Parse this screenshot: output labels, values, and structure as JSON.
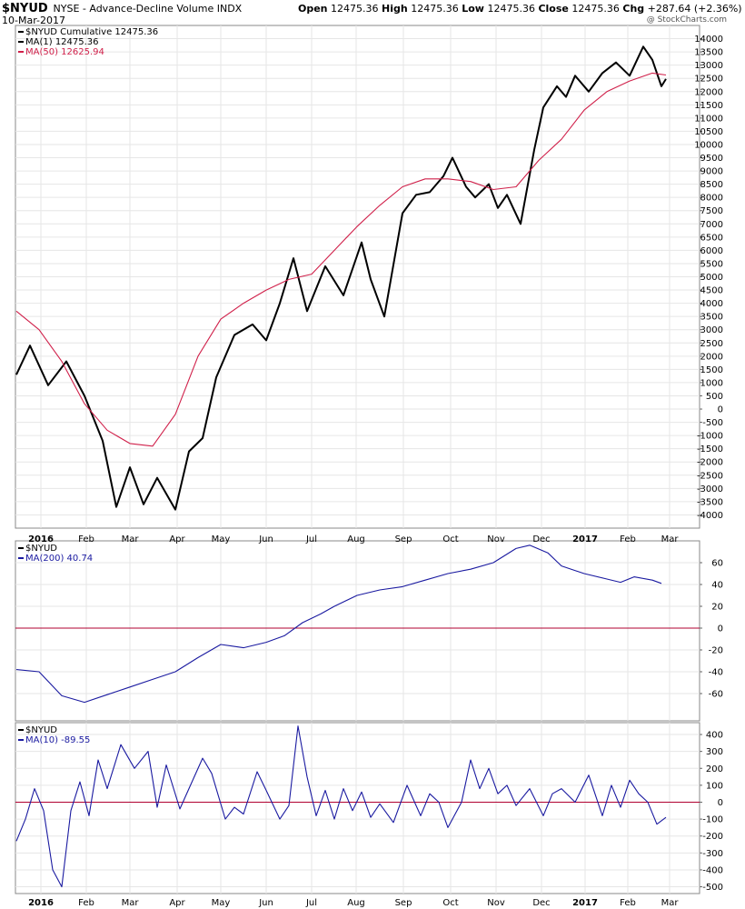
{
  "header": {
    "symbol": "$NYUD",
    "description": "NYSE - Advance-Decline Volume INDX",
    "date": "10-Mar-2017",
    "open_label": "Open",
    "open": "12475.36",
    "high_label": "High",
    "high": "12475.36",
    "low_label": "Low",
    "low": "12475.36",
    "close_label": "Close",
    "close": "12475.36",
    "chg_label": "Chg",
    "chg": "+287.64 (+2.36%)",
    "chg_arrow": "▲",
    "brand": "@ StockCharts.com"
  },
  "colors": {
    "price": "#000000",
    "ma50": "#d0204a",
    "indicator": "#1a1aa0",
    "zero_line": "#b00030",
    "grid": "#e6e6e6",
    "border": "#888888"
  },
  "chart_data": [
    {
      "type": "line",
      "panel": "main",
      "legend": [
        {
          "text": "$NYUD Cumulative 12475.36",
          "color": "#000000"
        },
        {
          "text": "MA(1) 12475.36",
          "color": "#000000"
        },
        {
          "text": "MA(50) 12625.94",
          "color": "#d0204a"
        }
      ],
      "ylim": [
        -4500,
        14500
      ],
      "ticks": [
        14000,
        13500,
        13000,
        12500,
        12000,
        11500,
        11000,
        10500,
        10000,
        9500,
        9000,
        8500,
        8000,
        7500,
        7000,
        6500,
        6000,
        5500,
        5000,
        4500,
        4000,
        3500,
        3000,
        2500,
        2000,
        1500,
        1000,
        500,
        0,
        -500,
        -1000,
        -1500,
        -2000,
        -2500,
        -3000,
        -3500,
        -4000
      ],
      "x_months": [
        "2016",
        "Feb",
        "Mar",
        "Apr",
        "May",
        "Jun",
        "Jul",
        "Aug",
        "Sep",
        "Oct",
        "Nov",
        "Dec",
        "2017",
        "Feb",
        "Mar"
      ],
      "series": [
        {
          "name": "$NYUD Cumulative",
          "x": [
            0,
            0.3,
            0.7,
            1.1,
            1.5,
            1.9,
            2.2,
            2.5,
            2.8,
            3.1,
            3.5,
            3.8,
            4.1,
            4.4,
            4.8,
            5.2,
            5.5,
            5.8,
            6.1,
            6.4,
            6.8,
            7.2,
            7.6,
            7.8,
            8.1,
            8.5,
            8.8,
            9.1,
            9.4,
            9.6,
            9.9,
            10.1,
            10.4,
            10.6,
            10.8,
            11.1,
            11.4,
            11.6,
            11.9,
            12.1,
            12.3,
            12.6,
            12.9,
            13.2,
            13.5,
            13.8,
            14.0,
            14.2,
            14.3
          ],
          "y": [
            1300,
            2400,
            900,
            1800,
            500,
            -1200,
            -3700,
            -2200,
            -3600,
            -2600,
            -3800,
            -1600,
            -1100,
            1200,
            2800,
            3200,
            2600,
            4000,
            5700,
            3700,
            5400,
            4300,
            6300,
            4900,
            3500,
            7400,
            8100,
            8200,
            8800,
            9500,
            8400,
            8000,
            8500,
            7600,
            8100,
            7000,
            9800,
            11400,
            12200,
            11800,
            12600,
            12000,
            12700,
            13100,
            12600,
            13700,
            13200,
            12200,
            12475
          ],
          "color": "#000000"
        },
        {
          "name": "MA(50)",
          "x": [
            0,
            0.5,
            1,
            1.5,
            2,
            2.5,
            3,
            3.5,
            4,
            4.5,
            5,
            5.5,
            6,
            6.5,
            7,
            7.5,
            8,
            8.5,
            9,
            9.5,
            10,
            10.5,
            11,
            11.5,
            12,
            12.5,
            13,
            13.5,
            14,
            14.3
          ],
          "y": [
            3700,
            3000,
            1800,
            200,
            -800,
            -1300,
            -1400,
            -200,
            2000,
            3400,
            4000,
            4500,
            4900,
            5100,
            6000,
            6900,
            7700,
            8400,
            8700,
            8700,
            8600,
            8300,
            8400,
            9400,
            10200,
            11300,
            12000,
            12400,
            12700,
            12626
          ],
          "color": "#d0204a"
        }
      ]
    },
    {
      "type": "line",
      "panel": "ma200",
      "legend": [
        {
          "text": "$NYUD",
          "color": "#000000"
        },
        {
          "text": "MA(200) 40.74",
          "color": "#1a1aa0"
        }
      ],
      "ylim": [
        -85,
        80
      ],
      "ticks": [
        60,
        40,
        20,
        0,
        -20,
        -40,
        -60
      ],
      "zero_line": 0,
      "series": [
        {
          "name": "MA(200)",
          "x": [
            0,
            0.5,
            1,
            1.5,
            2,
            2.5,
            3,
            3.5,
            4,
            4.5,
            5,
            5.5,
            5.9,
            6.3,
            6.7,
            7,
            7.5,
            8,
            8.5,
            9,
            9.5,
            10,
            10.5,
            11,
            11.3,
            11.7,
            12,
            12.5,
            13,
            13.3,
            13.6,
            14,
            14.2
          ],
          "y": [
            -38,
            -40,
            -62,
            -68,
            -61,
            -54,
            -47,
            -40,
            -27,
            -15,
            -18,
            -13,
            -7,
            5,
            13,
            20,
            30,
            35,
            38,
            44,
            50,
            54,
            60,
            73,
            76,
            69,
            57,
            50,
            45,
            42,
            47,
            44,
            41
          ],
          "color": "#1a1aa0"
        }
      ]
    },
    {
      "type": "line",
      "panel": "ma10",
      "legend": [
        {
          "text": "$NYUD",
          "color": "#000000"
        },
        {
          "text": "MA(10) -89.55",
          "color": "#1a1aa0"
        }
      ],
      "ylim": [
        -540,
        470
      ],
      "ticks": [
        400,
        300,
        200,
        100,
        0,
        -100,
        -200,
        -300,
        -400,
        -500
      ],
      "zero_line": 0,
      "series": [
        {
          "name": "MA(10)",
          "x": [
            0,
            0.2,
            0.4,
            0.6,
            0.8,
            1.0,
            1.2,
            1.4,
            1.6,
            1.8,
            2.0,
            2.3,
            2.6,
            2.9,
            3.1,
            3.3,
            3.6,
            3.9,
            4.1,
            4.3,
            4.6,
            4.8,
            5.0,
            5.3,
            5.5,
            5.8,
            6.0,
            6.2,
            6.4,
            6.6,
            6.8,
            7.0,
            7.2,
            7.4,
            7.6,
            7.8,
            8.0,
            8.3,
            8.6,
            8.9,
            9.1,
            9.3,
            9.5,
            9.8,
            10.0,
            10.2,
            10.4,
            10.6,
            10.8,
            11.0,
            11.3,
            11.6,
            11.8,
            12.0,
            12.3,
            12.6,
            12.9,
            13.1,
            13.3,
            13.5,
            13.7,
            13.9,
            14.1,
            14.3
          ],
          "y": [
            -230,
            -100,
            80,
            -50,
            -400,
            -500,
            -50,
            120,
            -80,
            250,
            80,
            340,
            200,
            300,
            -30,
            220,
            -40,
            140,
            260,
            170,
            -100,
            -30,
            -70,
            180,
            70,
            -100,
            -20,
            450,
            150,
            -80,
            70,
            -100,
            80,
            -50,
            60,
            -90,
            -10,
            -120,
            100,
            -80,
            50,
            0,
            -150,
            0,
            250,
            80,
            200,
            50,
            100,
            -20,
            80,
            -80,
            50,
            80,
            0,
            160,
            -80,
            100,
            -30,
            130,
            50,
            0,
            -130,
            -90
          ],
          "color": "#1a1aa0"
        }
      ]
    }
  ]
}
